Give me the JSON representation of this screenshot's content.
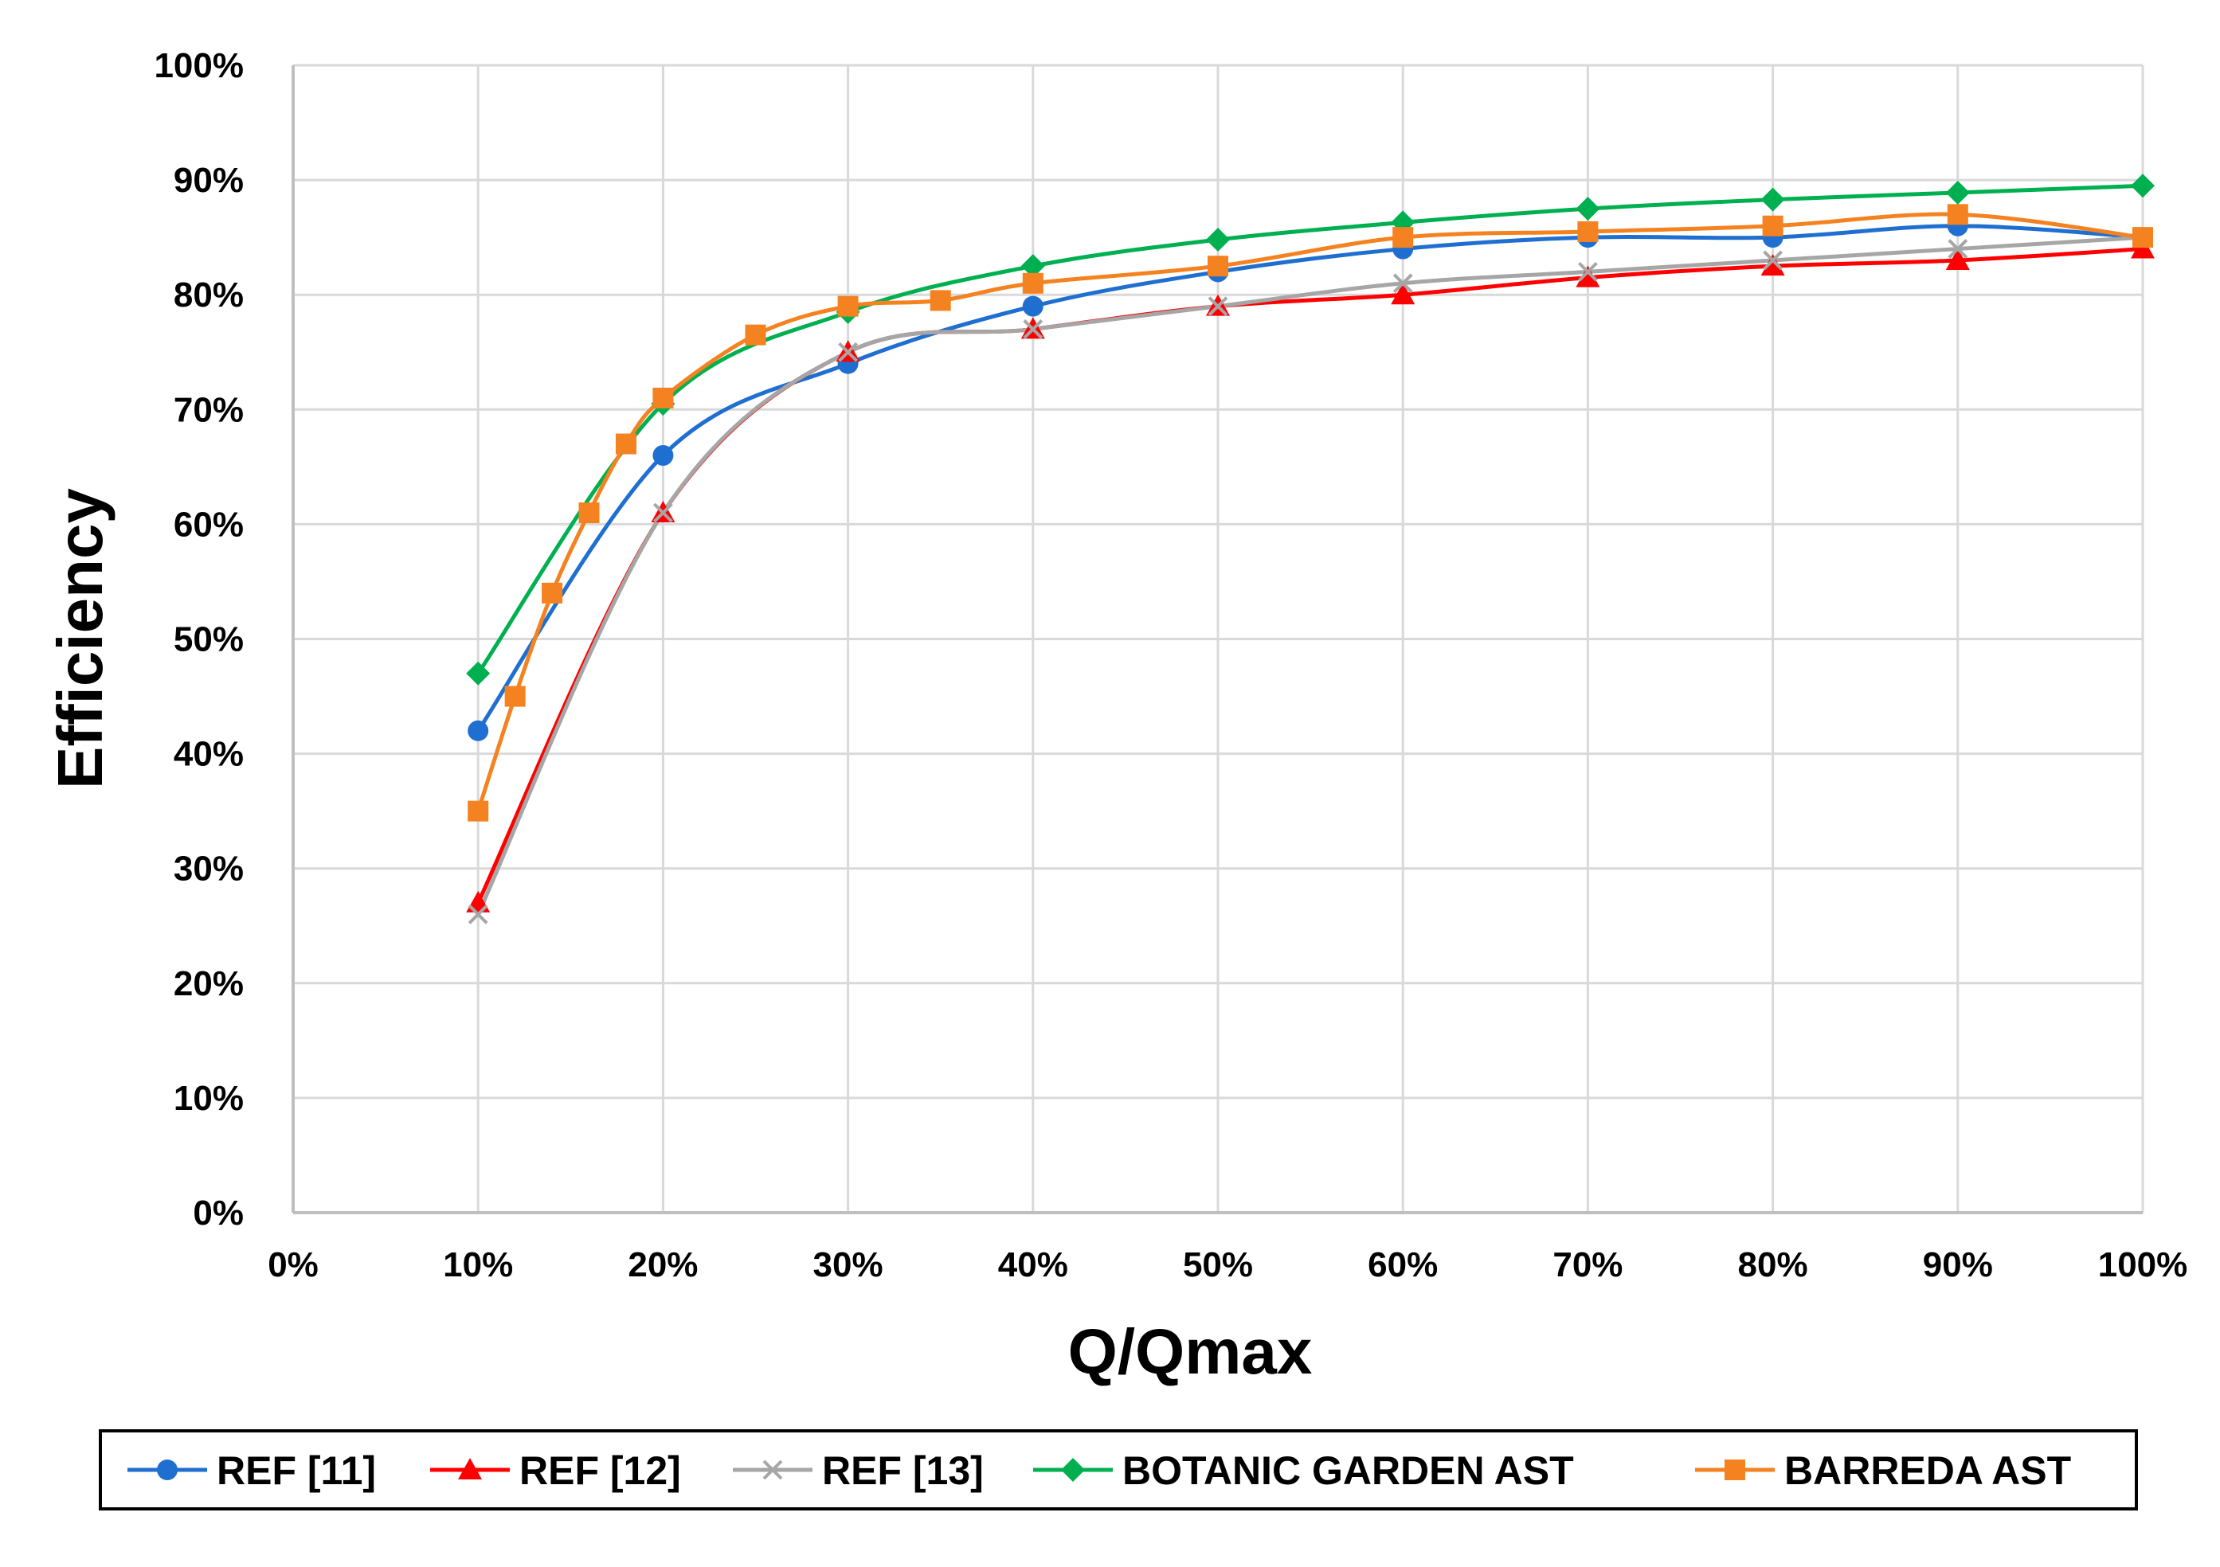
{
  "chart_data": {
    "type": "line",
    "xlabel": "Q/Qmax",
    "ylabel": "Efficiency",
    "xlim": [
      0,
      100
    ],
    "ylim": [
      0,
      100
    ],
    "x_ticks": [
      0,
      10,
      20,
      30,
      40,
      50,
      60,
      70,
      80,
      90,
      100
    ],
    "y_ticks": [
      0,
      10,
      20,
      30,
      40,
      50,
      60,
      70,
      80,
      90,
      100
    ],
    "x_tick_labels": [
      "0%",
      "10%",
      "20%",
      "30%",
      "40%",
      "50%",
      "60%",
      "70%",
      "80%",
      "90%",
      "100%"
    ],
    "y_tick_labels": [
      "0%",
      "10%",
      "20%",
      "30%",
      "40%",
      "50%",
      "60%",
      "70%",
      "80%",
      "90%",
      "100%"
    ],
    "grid": true,
    "smooth": true,
    "legend_position": "bottom",
    "series": [
      {
        "name": "REF [11]",
        "color": "#1f6fd1",
        "marker": "circle",
        "x": [
          10,
          20,
          30,
          40,
          50,
          60,
          70,
          80,
          90,
          100
        ],
        "y": [
          42,
          66,
          74,
          79,
          82,
          84,
          85,
          85,
          86,
          85
        ]
      },
      {
        "name": "REF [12]",
        "color": "#ff0000",
        "marker": "triangle",
        "x": [
          10,
          20,
          30,
          40,
          50,
          60,
          70,
          80,
          90,
          100
        ],
        "y": [
          27,
          61,
          75,
          77,
          79,
          80,
          81.5,
          82.5,
          83,
          84
        ]
      },
      {
        "name": "REF [13]",
        "color": "#a6a6a6",
        "marker": "x",
        "x": [
          10,
          20,
          30,
          40,
          50,
          60,
          70,
          80,
          90,
          100
        ],
        "y": [
          26,
          61,
          75,
          77,
          79,
          81,
          82,
          83,
          84,
          85
        ]
      },
      {
        "name": "BOTANIC GARDEN AST",
        "color": "#00b050",
        "marker": "diamond",
        "x": [
          10,
          20,
          30,
          40,
          50,
          60,
          70,
          80,
          90,
          100
        ],
        "y": [
          47,
          70.5,
          78.5,
          82.5,
          84.8,
          86.3,
          87.5,
          88.3,
          88.9,
          89.5
        ]
      },
      {
        "name": "BARREDA AST",
        "color": "#f58220",
        "marker": "square",
        "x": [
          10,
          12,
          14,
          16,
          18,
          20,
          25,
          30,
          35,
          40,
          50,
          60,
          70,
          80,
          90,
          100
        ],
        "y": [
          35,
          45,
          54,
          61,
          67,
          71,
          76.5,
          79,
          79.5,
          81,
          82.5,
          85,
          85.5,
          86,
          87,
          85
        ]
      }
    ]
  }
}
